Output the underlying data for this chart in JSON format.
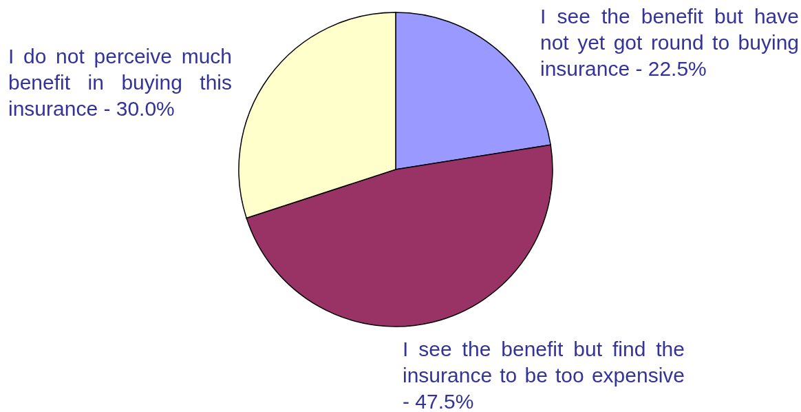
{
  "chart_data": {
    "type": "pie",
    "categories": [
      "I see the benefit but have not yet got round to buying insurance -",
      "I see the benefit but find the insurance to be too expensive -",
      "I do not perceive much benefit in buying this insurance -"
    ],
    "values": [
      22.5,
      47.5,
      30.0
    ],
    "value_labels": [
      "22.5%",
      "47.5%",
      "30.0%"
    ],
    "colors": [
      "#9999ff",
      "#993366",
      "#ffffcc"
    ],
    "legend": false
  }
}
